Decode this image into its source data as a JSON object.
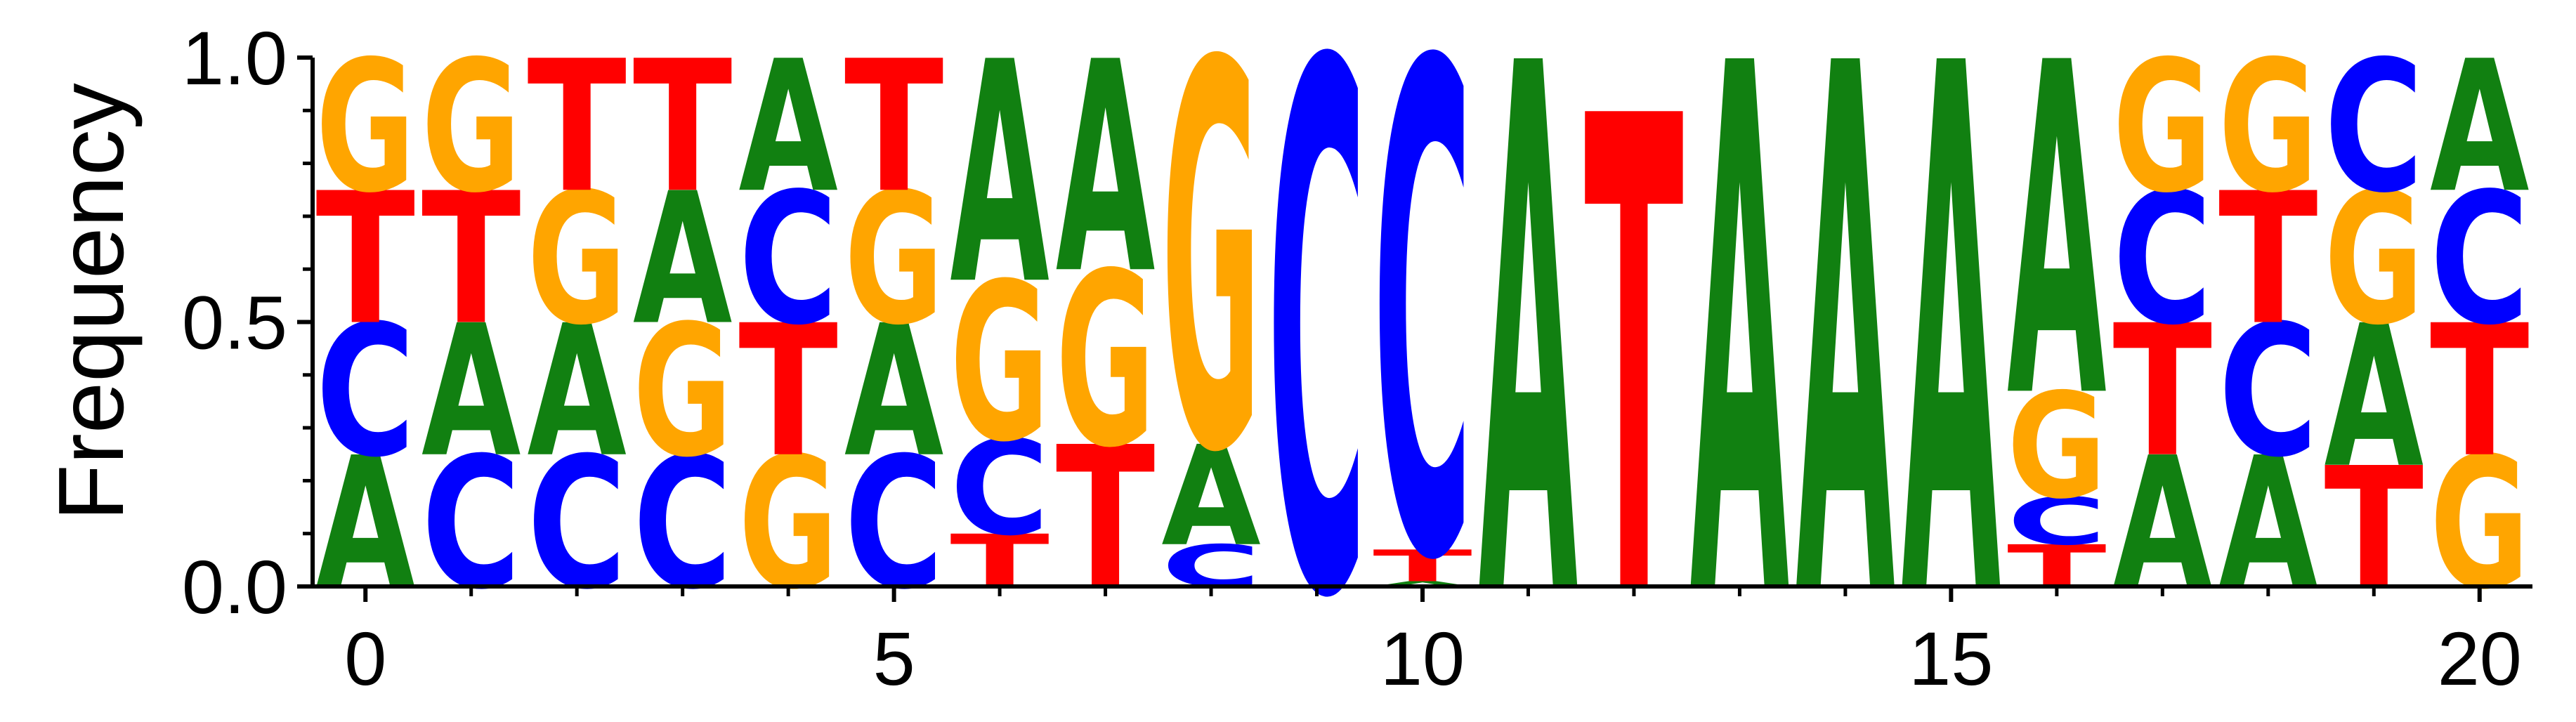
{
  "chart_data": {
    "type": "sequence-logo",
    "ylabel": "Frequency",
    "ylim": [
      0,
      1.0
    ],
    "xlim": [
      -0.5,
      20.5
    ],
    "yticks": [
      "0.0",
      "0.5",
      "1.0"
    ],
    "xticks": [
      "0",
      "5",
      "10",
      "15",
      "20"
    ],
    "colors": {
      "A": "#118011",
      "C": "#0000ff",
      "G": "#ffa500",
      "T": "#ff0000"
    },
    "positions": [
      {
        "pos": 0,
        "stack": [
          [
            "A",
            0.25
          ],
          [
            "C",
            0.25
          ],
          [
            "T",
            0.25
          ],
          [
            "G",
            0.25
          ]
        ]
      },
      {
        "pos": 1,
        "stack": [
          [
            "C",
            0.25
          ],
          [
            "A",
            0.25
          ],
          [
            "T",
            0.25
          ],
          [
            "G",
            0.25
          ]
        ]
      },
      {
        "pos": 2,
        "stack": [
          [
            "C",
            0.25
          ],
          [
            "A",
            0.25
          ],
          [
            "G",
            0.25
          ],
          [
            "T",
            0.25
          ]
        ]
      },
      {
        "pos": 3,
        "stack": [
          [
            "C",
            0.25
          ],
          [
            "G",
            0.25
          ],
          [
            "A",
            0.25
          ],
          [
            "T",
            0.25
          ]
        ]
      },
      {
        "pos": 4,
        "stack": [
          [
            "G",
            0.25
          ],
          [
            "T",
            0.25
          ],
          [
            "C",
            0.25
          ],
          [
            "A",
            0.25
          ]
        ]
      },
      {
        "pos": 5,
        "stack": [
          [
            "C",
            0.25
          ],
          [
            "A",
            0.25
          ],
          [
            "G",
            0.25
          ],
          [
            "T",
            0.25
          ]
        ]
      },
      {
        "pos": 6,
        "stack": [
          [
            "T",
            0.1
          ],
          [
            "C",
            0.18
          ],
          [
            "G",
            0.3
          ],
          [
            "A",
            0.42
          ]
        ]
      },
      {
        "pos": 7,
        "stack": [
          [
            "T",
            0.27
          ],
          [
            "G",
            0.33
          ],
          [
            "A",
            0.4
          ]
        ]
      },
      {
        "pos": 8,
        "stack": [
          [
            "C",
            0.08
          ],
          [
            "A",
            0.19
          ],
          [
            "G",
            0.73
          ]
        ]
      },
      {
        "pos": 9,
        "stack": [
          [
            "C",
            1.0
          ]
        ]
      },
      {
        "pos": 10,
        "stack": [
          [
            "A",
            0.01
          ],
          [
            "T",
            0.06
          ],
          [
            "C",
            0.93
          ]
        ]
      },
      {
        "pos": 11,
        "stack": [
          [
            "A",
            1.0
          ]
        ]
      },
      {
        "pos": 12,
        "stack": [
          [
            "T",
            0.9
          ]
        ]
      },
      {
        "pos": 13,
        "stack": [
          [
            "A",
            1.0
          ]
        ]
      },
      {
        "pos": 14,
        "stack": [
          [
            "A",
            1.0
          ]
        ]
      },
      {
        "pos": 15,
        "stack": [
          [
            "A",
            1.0
          ]
        ]
      },
      {
        "pos": 16,
        "stack": [
          [
            "T",
            0.08
          ],
          [
            "C",
            0.09
          ],
          [
            "G",
            0.2
          ],
          [
            "A",
            0.63
          ]
        ]
      },
      {
        "pos": 17,
        "stack": [
          [
            "A",
            0.25
          ],
          [
            "T",
            0.25
          ],
          [
            "C",
            0.25
          ],
          [
            "G",
            0.25
          ]
        ]
      },
      {
        "pos": 18,
        "stack": [
          [
            "A",
            0.25
          ],
          [
            "C",
            0.25
          ],
          [
            "T",
            0.25
          ],
          [
            "G",
            0.25
          ]
        ]
      },
      {
        "pos": 19,
        "stack": [
          [
            "T",
            0.23
          ],
          [
            "A",
            0.27
          ],
          [
            "G",
            0.25
          ],
          [
            "C",
            0.25
          ]
        ]
      },
      {
        "pos": 20,
        "stack": [
          [
            "G",
            0.25
          ],
          [
            "T",
            0.25
          ],
          [
            "C",
            0.25
          ],
          [
            "A",
            0.25
          ]
        ]
      }
    ]
  }
}
